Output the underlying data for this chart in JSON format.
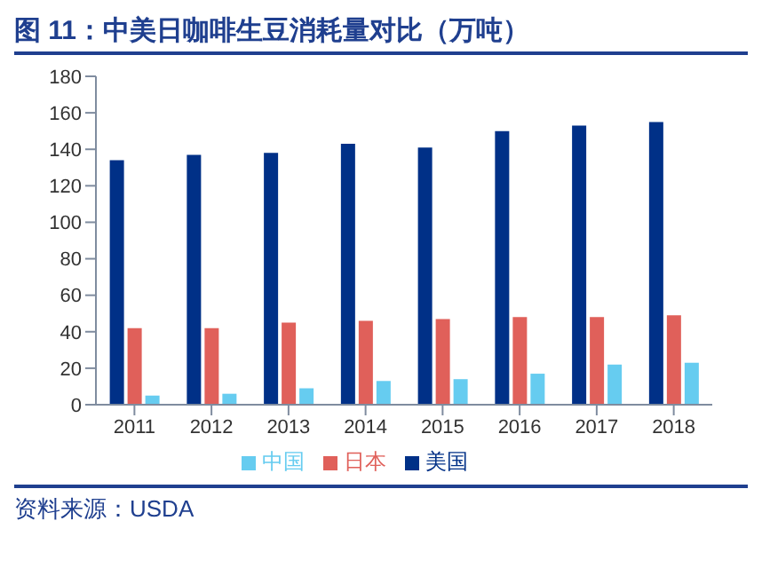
{
  "chart_data": {
    "type": "bar",
    "title": "图 11：中美日咖啡生豆消耗量对比（万吨）",
    "categories": [
      "2011",
      "2012",
      "2013",
      "2014",
      "2015",
      "2016",
      "2017",
      "2018"
    ],
    "series": [
      {
        "name": "美国",
        "color": "#003087",
        "values": [
          134,
          137,
          138,
          143,
          141,
          150,
          153,
          155
        ]
      },
      {
        "name": "日本",
        "color": "#e0605a",
        "values": [
          42,
          42,
          45,
          46,
          47,
          48,
          48,
          49
        ]
      },
      {
        "name": "中国",
        "color": "#66ccf0",
        "values": [
          5,
          6,
          9,
          13,
          14,
          17,
          22,
          23
        ]
      }
    ],
    "ylim": [
      0,
      180
    ],
    "yticks": [
      0,
      20,
      40,
      60,
      80,
      100,
      120,
      140,
      160,
      180
    ],
    "grid": false,
    "legend": "bottom",
    "annotations": [
      "资料来源：USDA"
    ]
  }
}
